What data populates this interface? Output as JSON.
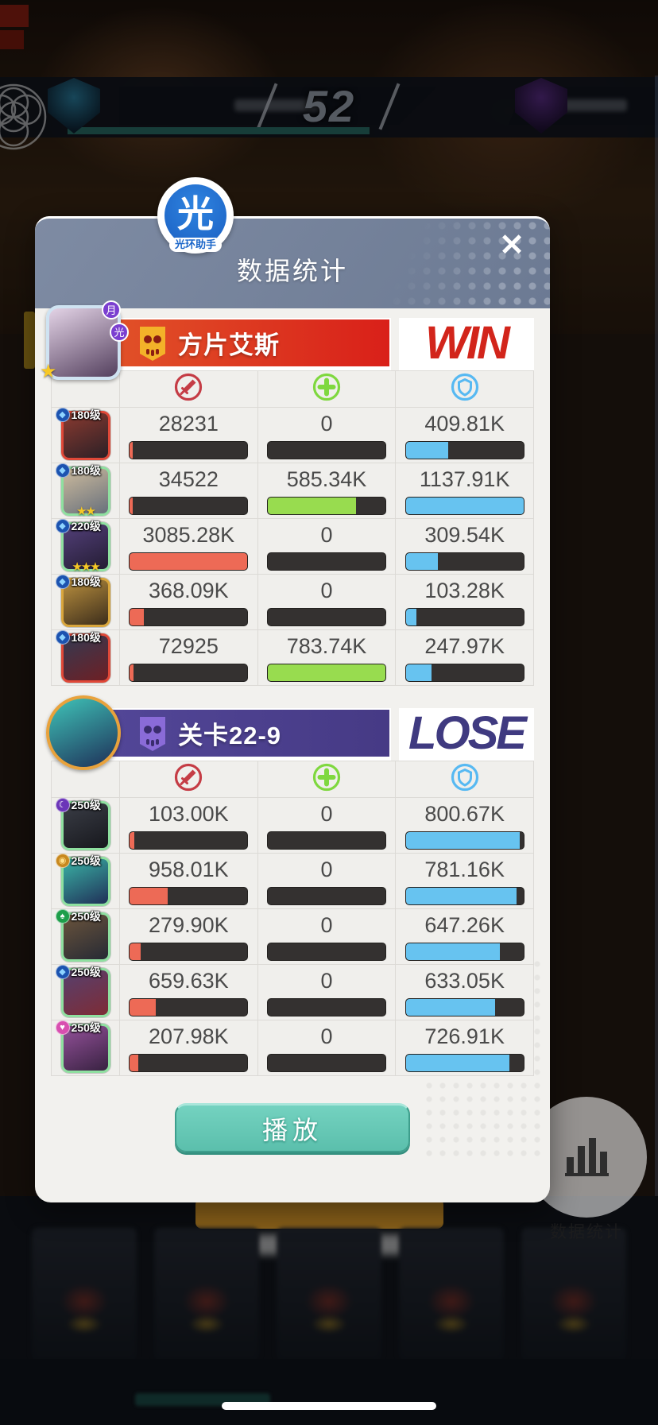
{
  "overlay": {
    "logo": {
      "glyph": "光",
      "label": "光环助手"
    },
    "title": "数据统计",
    "close_glyph": "✕",
    "play_button_label": "播放"
  },
  "background": {
    "score": "52",
    "assistant_button_label": "数据统计"
  },
  "bar_colors": {
    "damage": "#ED6A56",
    "heal": "#98DC4F",
    "shield": "#67C3F0"
  },
  "column_icons": {
    "damage": "sword-in-circle",
    "heal": "plus-in-circle",
    "shield": "shield-in-circle"
  },
  "icon_colors": {
    "damage": "#C53C45",
    "heal": "#7FD83F",
    "shield": "#57B9F2"
  },
  "suits": {
    "diamond": {
      "glyph": "◆",
      "bg": "#1C53B0",
      "fg": "#8ED4FF"
    },
    "moon": {
      "glyph": "☾",
      "bg": "#6B35B8",
      "fg": "#FFFFFF"
    },
    "coin": {
      "glyph": "◉",
      "bg": "#C8881E",
      "fg": "#FFE08A"
    },
    "spade": {
      "glyph": "♠",
      "bg": "#1E9E4A",
      "fg": "#FFFFFF"
    },
    "heart": {
      "glyph": "♥",
      "bg": "#D84FB0",
      "fg": "#FFFFFF"
    }
  },
  "teams": [
    {
      "name": "方片艾斯",
      "result": "WIN",
      "result_color": "#D2251B",
      "banner_gradient": [
        "#E25A2B",
        "#D92019"
      ],
      "flag_colors": {
        "body": "#F3B229",
        "eyes": "#8A1D12"
      },
      "avatar": {
        "shape": "rounded",
        "ring": "#CFE3F2",
        "art": [
          "#E3D3E6",
          "#54405E"
        ],
        "decor_bubbles": [
          "月",
          "光"
        ],
        "decor_star": "★"
      },
      "rows": [
        {
          "level": "180级",
          "suit": "diamond",
          "border": "#E04838",
          "art": [
            "#8A3A30",
            "#2C2026"
          ],
          "stars": 0,
          "stats": {
            "damage": {
              "text": "28231",
              "pct": 2.5
            },
            "heal": {
              "text": "0",
              "pct": 0
            },
            "shield": {
              "text": "409.81K",
              "pct": 36
            }
          }
        },
        {
          "level": "180级",
          "suit": "diamond",
          "border": "#8FE0A0",
          "art": [
            "#CDBB9D",
            "#68707C"
          ],
          "stars": 2,
          "stats": {
            "damage": {
              "text": "34522",
              "pct": 2.5
            },
            "heal": {
              "text": "585.34K",
              "pct": 75
            },
            "shield": {
              "text": "1137.91K",
              "pct": 100
            }
          }
        },
        {
          "level": "220级",
          "suit": "diamond",
          "border": "#8FE0A0",
          "art": [
            "#53407A",
            "#241C33"
          ],
          "stars": 3,
          "stats": {
            "damage": {
              "text": "3085.28K",
              "pct": 100
            },
            "heal": {
              "text": "0",
              "pct": 0
            },
            "shield": {
              "text": "309.54K",
              "pct": 27
            }
          }
        },
        {
          "level": "180级",
          "suit": "diamond",
          "border": "#D9A63C",
          "art": [
            "#B98F3E",
            "#3C2D1B"
          ],
          "stars": 0,
          "stats": {
            "damage": {
              "text": "368.09K",
              "pct": 12
            },
            "heal": {
              "text": "0",
              "pct": 0
            },
            "shield": {
              "text": "103.28K",
              "pct": 9
            }
          }
        },
        {
          "level": "180级",
          "suit": "diamond",
          "border": "#E04838",
          "art": [
            "#333A52",
            "#6E1F24"
          ],
          "stars": 0,
          "stats": {
            "damage": {
              "text": "72925",
              "pct": 3
            },
            "heal": {
              "text": "783.74K",
              "pct": 100
            },
            "shield": {
              "text": "247.97K",
              "pct": 22
            }
          }
        }
      ]
    },
    {
      "name": "关卡22-9",
      "result": "LOSE",
      "result_color": "#3F3A80",
      "banner_gradient": [
        "#54489A",
        "#463A85"
      ],
      "flag_colors": {
        "body": "#8A6BD8",
        "eyes": "#3A2C6E"
      },
      "avatar": {
        "shape": "circle",
        "ring": "#E8A23C",
        "art": [
          "#3FC4B8",
          "#1E2F58"
        ],
        "decor_bubbles": [],
        "decor_star": ""
      },
      "rows": [
        {
          "level": "250级",
          "suit": "moon",
          "border": "#8FE0A0",
          "art": [
            "#3A3D46",
            "#17181D"
          ],
          "stars": 0,
          "stats": {
            "damage": {
              "text": "103.00K",
              "pct": 3.5
            },
            "heal": {
              "text": "0",
              "pct": 0
            },
            "shield": {
              "text": "800.67K",
              "pct": 97
            }
          }
        },
        {
          "level": "250级",
          "suit": "coin",
          "border": "#8FE0A0",
          "art": [
            "#3AB3A5",
            "#203058"
          ],
          "stars": 0,
          "stats": {
            "damage": {
              "text": "958.01K",
              "pct": 32
            },
            "heal": {
              "text": "0",
              "pct": 0
            },
            "shield": {
              "text": "781.16K",
              "pct": 94
            }
          }
        },
        {
          "level": "250级",
          "suit": "spade",
          "border": "#8FE0A0",
          "art": [
            "#6B543C",
            "#262A34"
          ],
          "stars": 0,
          "stats": {
            "damage": {
              "text": "279.90K",
              "pct": 9.5
            },
            "heal": {
              "text": "0",
              "pct": 0
            },
            "shield": {
              "text": "647.26K",
              "pct": 80
            }
          }
        },
        {
          "level": "250级",
          "suit": "diamond",
          "border": "#8FE0A0",
          "art": [
            "#56406E",
            "#7E2C36"
          ],
          "stars": 0,
          "stats": {
            "damage": {
              "text": "659.63K",
              "pct": 22
            },
            "heal": {
              "text": "0",
              "pct": 0
            },
            "shield": {
              "text": "633.05K",
              "pct": 76
            }
          }
        },
        {
          "level": "250级",
          "suit": "heart",
          "border": "#8FE0A0",
          "art": [
            "#94519A",
            "#382241"
          ],
          "stars": 0,
          "stats": {
            "damage": {
              "text": "207.98K",
              "pct": 7
            },
            "heal": {
              "text": "0",
              "pct": 0
            },
            "shield": {
              "text": "726.91K",
              "pct": 88
            }
          }
        }
      ]
    }
  ]
}
